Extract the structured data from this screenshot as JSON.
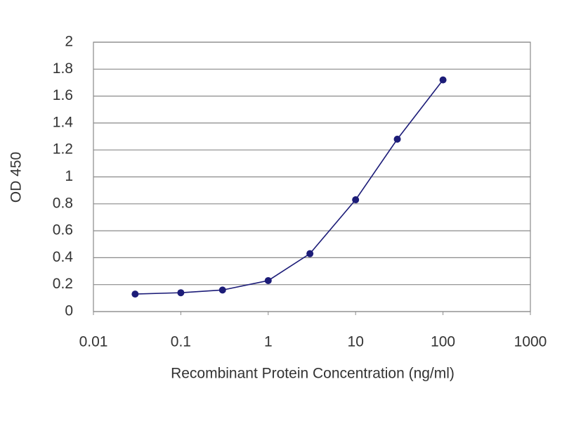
{
  "chart_data": {
    "type": "line",
    "xlabel": "Recombinant Protein Concentration (ng/ml)",
    "ylabel": "OD 450",
    "xscale": "log",
    "grid": true,
    "x": [
      0.03,
      0.1,
      0.3,
      1,
      3,
      10,
      30,
      100
    ],
    "series": [
      {
        "color": "#1c1c78",
        "values": [
          0.13,
          0.14,
          0.16,
          0.23,
          0.43,
          0.83,
          1.28,
          1.72
        ]
      }
    ],
    "xlim": [
      0.01,
      1000
    ],
    "xticks": [
      0.01,
      0.1,
      1,
      10,
      100,
      1000
    ],
    "ylim": [
      0,
      2
    ],
    "yticks": [
      0,
      0.2,
      0.4,
      0.6,
      0.8,
      1,
      1.2,
      1.4,
      1.6,
      1.8,
      2
    ]
  }
}
